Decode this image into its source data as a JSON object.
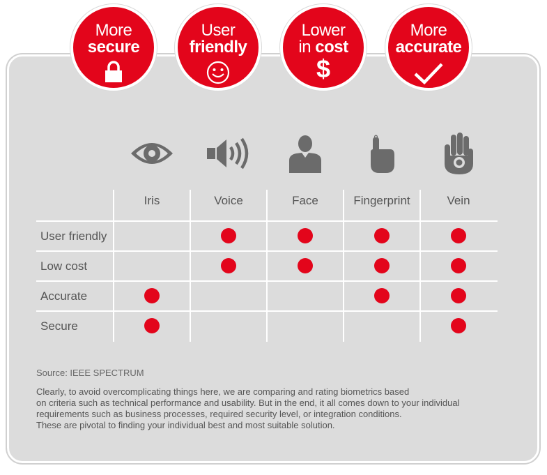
{
  "badges": [
    {
      "line1": "More",
      "line2": "secure",
      "icon": "padlock-icon"
    },
    {
      "line1": "User",
      "line2": "friendly",
      "icon": "smiley-icon"
    },
    {
      "line1": "Lower",
      "line2a": "in ",
      "line2b": "cost",
      "symbol": "$",
      "icon": "dollar-icon"
    },
    {
      "line1": "More",
      "line2": "accurate",
      "icon": "checkmark-icon"
    }
  ],
  "columns": [
    {
      "label": "Iris",
      "icon": "eye-icon"
    },
    {
      "label": "Voice",
      "icon": "speaker-icon"
    },
    {
      "label": "Face",
      "icon": "person-icon"
    },
    {
      "label": "Fingerprint",
      "icon": "finger-icon"
    },
    {
      "label": "Vein",
      "icon": "hand-icon"
    }
  ],
  "rows": [
    "User friendly",
    "Low cost",
    "Accurate",
    "Secure"
  ],
  "ratings": [
    [
      false,
      true,
      true,
      true,
      true
    ],
    [
      false,
      true,
      true,
      true,
      true
    ],
    [
      true,
      false,
      false,
      true,
      true
    ],
    [
      true,
      false,
      false,
      false,
      true
    ]
  ],
  "source": "Source: IEEE SPECTRUM",
  "description": [
    "Clearly, to avoid overcomplicating things here, we are comparing and rating biometrics based",
    "on criteria such as technical performance and usability. But in the end, it all comes down to your individual",
    "requirements such as business processes, required security level, or integration conditions.",
    "These are pivotal to finding your individual best and most suitable solution."
  ],
  "colors": {
    "accent": "#e3051b",
    "panel": "#dcdcdc",
    "icon": "#6b6b6b"
  }
}
